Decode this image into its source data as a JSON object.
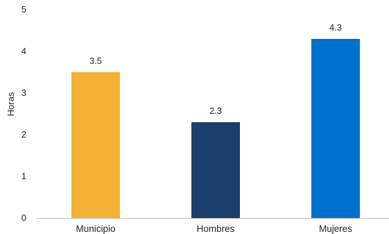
{
  "chart_data": {
    "type": "bar",
    "categories": [
      "Municipio",
      "Hombres",
      "Mujeres"
    ],
    "values": [
      3.5,
      2.3,
      4.3
    ],
    "value_labels": [
      "3.5",
      "2.3",
      "4.3"
    ],
    "colors": [
      "#F3B233",
      "#1A3F6B",
      "#0070CF"
    ],
    "title": "",
    "xlabel": "",
    "ylabel": "Horas",
    "ylim": [
      0,
      5
    ],
    "yticks": [
      0,
      1,
      2,
      3,
      4,
      5
    ],
    "grid": false,
    "legend": "none"
  }
}
